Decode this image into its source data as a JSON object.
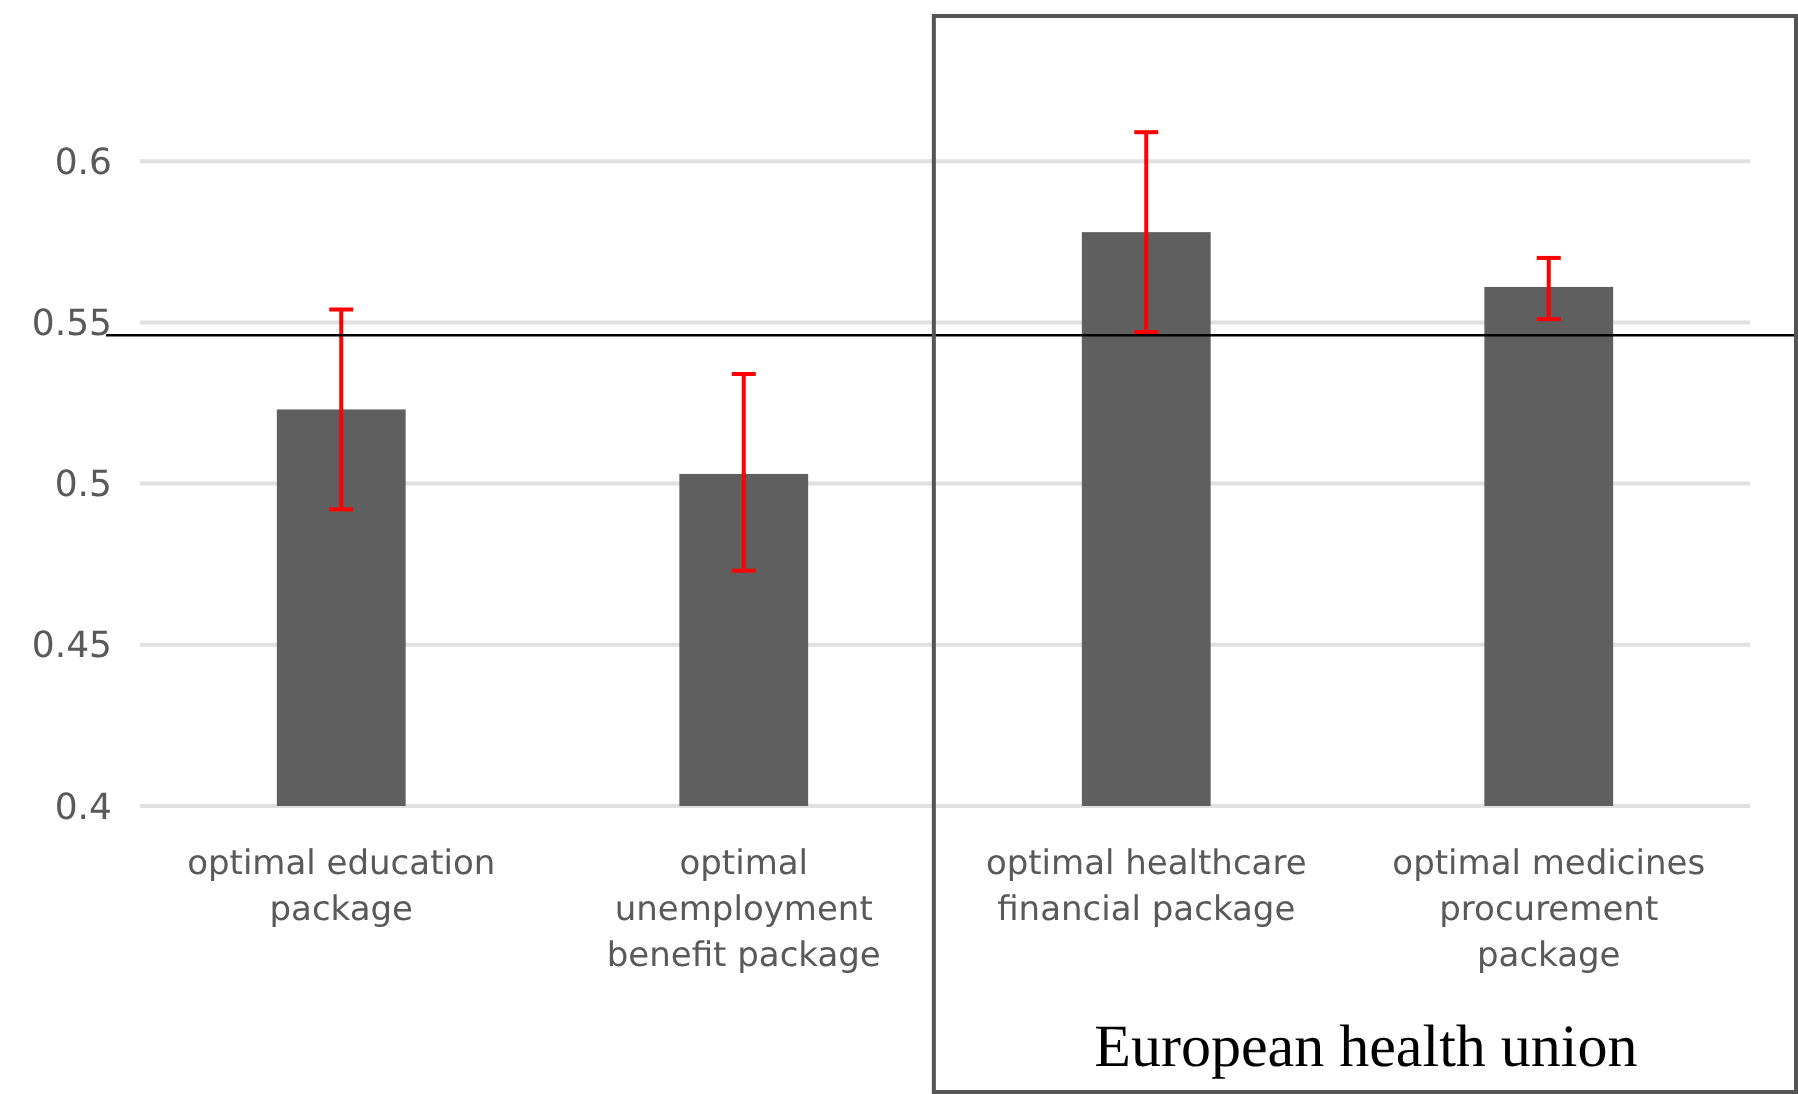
{
  "chart_data": {
    "type": "bar",
    "categories": [
      "optimal education package",
      "optimal unemployment benefit package",
      "optimal healthcare financial package",
      "optimal medicines procurement package"
    ],
    "values": [
      0.523,
      0.503,
      0.578,
      0.561
    ],
    "errors": [
      [
        0.492,
        0.554
      ],
      [
        0.473,
        0.534
      ],
      [
        0.547,
        0.609
      ],
      [
        0.551,
        0.57
      ]
    ],
    "color": "#5f5f5f",
    "ylim": [
      0.4,
      0.65
    ],
    "yticks": [
      0.4,
      0.45,
      0.5,
      0.55,
      0.6
    ],
    "grid": "y",
    "ref_lines": [
      {
        "axis": "y",
        "value": 0.546,
        "color": "#000000"
      }
    ],
    "annotations": [
      "European health union"
    ]
  }
}
